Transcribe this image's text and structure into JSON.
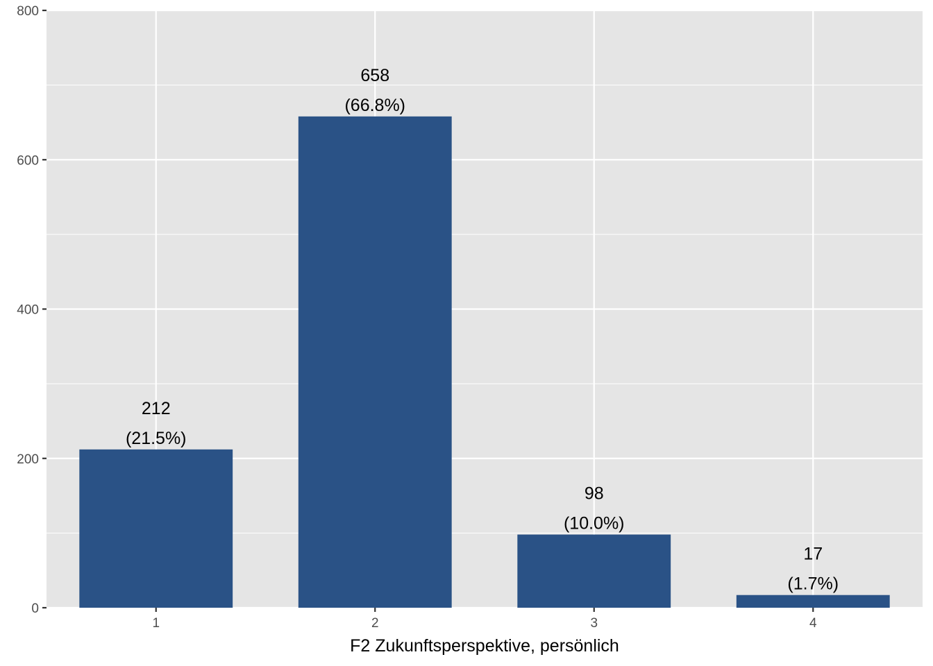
{
  "chart_data": {
    "type": "bar",
    "title": "",
    "xlabel": "F2 Zukunftsperspektive, persönlich",
    "ylabel": "",
    "categories": [
      "1",
      "2",
      "3",
      "4"
    ],
    "values": [
      212,
      658,
      98,
      17
    ],
    "data_labels": [
      {
        "count": "212",
        "percent": "(21.5%)"
      },
      {
        "count": "658",
        "percent": "(66.8%)"
      },
      {
        "count": "98",
        "percent": "(10.0%)"
      },
      {
        "count": "17",
        "percent": "(1.7%)"
      }
    ],
    "ylim": [
      0,
      800
    ],
    "yticks": [
      0,
      200,
      400,
      600,
      800
    ],
    "ytick_labels": [
      "0",
      "200",
      "400",
      "600",
      "800"
    ],
    "grid": true,
    "legend": "none",
    "colors": {
      "bar": "#2a5286",
      "panel_background": "#e5e5e5",
      "gridline": "#ffffff",
      "tick_text": "#4d4d4d",
      "label_text": "#000000"
    }
  }
}
